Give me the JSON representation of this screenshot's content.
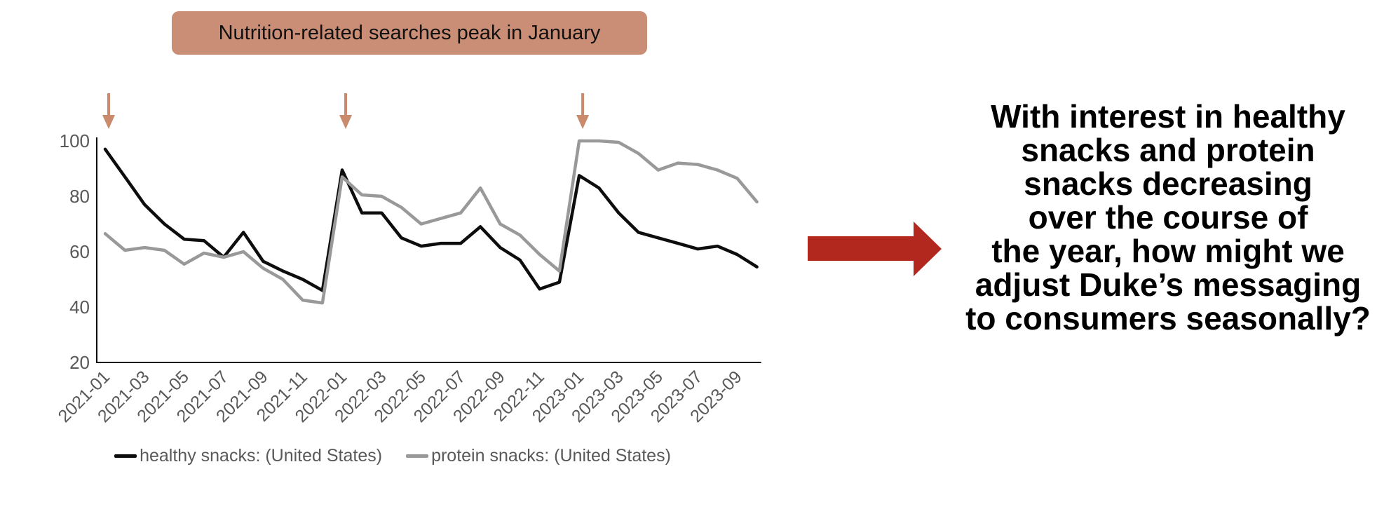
{
  "banner": {
    "label": "Nutrition-related searches peak in January"
  },
  "question": {
    "text": "With interest in healthy\nsnacks and protein\nsnacks decreasing\nover the course of\nthe year, how might we\nadjust Duke’s messaging\nto consumers seasonally?"
  },
  "colors": {
    "banner_bg": "#ca8d75",
    "accent_arrow": "#ca8a6c",
    "red_arrow": "#b2281e",
    "axis_line": "#000000",
    "tick_text": "#595959",
    "healthy_line": "#0d0d0d",
    "protein_line": "#999999"
  },
  "chart_data": {
    "type": "line",
    "x": [
      "2021-01",
      "2021-02",
      "2021-03",
      "2021-04",
      "2021-05",
      "2021-06",
      "2021-07",
      "2021-08",
      "2021-09",
      "2021-10",
      "2021-11",
      "2021-12",
      "2022-01",
      "2022-02",
      "2022-03",
      "2022-04",
      "2022-05",
      "2022-06",
      "2022-07",
      "2022-08",
      "2022-09",
      "2022-10",
      "2022-11",
      "2022-12",
      "2023-01",
      "2023-02",
      "2023-03",
      "2023-04",
      "2023-05",
      "2023-06",
      "2023-07",
      "2023-08",
      "2023-09",
      "2023-10"
    ],
    "series": [
      {
        "name": "healthy snacks: (United States)",
        "color": "#0d0d0d",
        "values": [
          97,
          87,
          77,
          70,
          64.5,
          64,
          58,
          67,
          56.5,
          53,
          50,
          46,
          89.5,
          74,
          74,
          65,
          62,
          63,
          63,
          69,
          61.5,
          57,
          46.5,
          49,
          87.5,
          83,
          74,
          67,
          65,
          63,
          61,
          62,
          59,
          54.5
        ]
      },
      {
        "name": "protein snacks: (United States)",
        "color": "#999999",
        "values": [
          66.5,
          60.5,
          61.5,
          60.5,
          55.5,
          59.5,
          58,
          60,
          54,
          50,
          42.5,
          41.5,
          87,
          80.5,
          80,
          76,
          70,
          72,
          74,
          83,
          70,
          66,
          59,
          53,
          100,
          100,
          99.5,
          95.5,
          89.5,
          92,
          91.5,
          89.5,
          86.5,
          78
        ]
      }
    ],
    "title": "Nutrition-related searches peak in January",
    "xlabel": "",
    "ylabel": "",
    "ylim": [
      20,
      100
    ],
    "yticks": [
      20,
      40,
      60,
      80,
      100
    ],
    "xtick_labels": [
      "2021-01",
      "2021-03",
      "2021-05",
      "2021-07",
      "2021-09",
      "2021-11",
      "2022-01",
      "2022-03",
      "2022-05",
      "2022-07",
      "2022-09",
      "2022-11",
      "2023-01",
      "2023-03",
      "2023-05",
      "2023-07",
      "2023-09"
    ],
    "grid": false,
    "legend_position": "bottom",
    "annotations": [
      {
        "type": "down-arrow",
        "x": "2021-01"
      },
      {
        "type": "down-arrow",
        "x": "2022-01"
      },
      {
        "type": "down-arrow",
        "x": "2023-01"
      }
    ]
  }
}
